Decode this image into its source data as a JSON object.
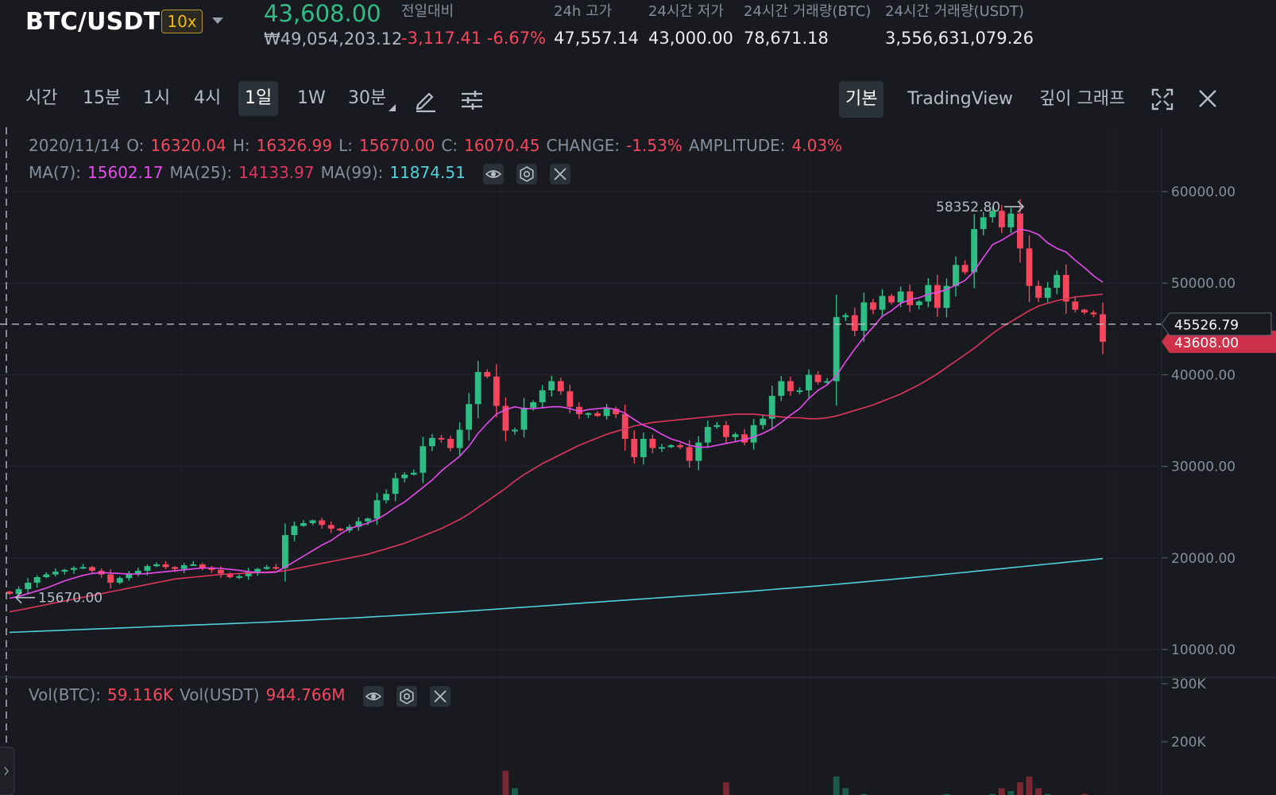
{
  "header": {
    "pair": "BTC/USDT",
    "leverage": "10x",
    "last_price": "43,608.00",
    "price_krw": "₩49,054,203.12",
    "stats": [
      {
        "label": "전일대비",
        "value": "-3,117.41 -6.67%"
      },
      {
        "label": "24h 고가",
        "value": "47,557.14"
      },
      {
        "label": "24시간 저가",
        "value": "43,000.00"
      },
      {
        "label": "24시간 거래량(BTC)",
        "value": "78,671.18"
      },
      {
        "label": "24시간 거래량(USDT)",
        "value": "3,556,631,079.26"
      }
    ]
  },
  "toolbar": {
    "intervals": [
      "시간",
      "15분",
      "1시",
      "4시",
      "1일",
      "1W",
      "30분"
    ],
    "active_interval": "1일",
    "views": [
      "기본",
      "TradingView",
      "깊이 그래프"
    ],
    "active_view": "기본"
  },
  "legend": {
    "date": "2020/11/14",
    "o_label": "O:",
    "o": "16320.04",
    "h_label": "H:",
    "h": "16326.99",
    "l_label": "L:",
    "l": "15670.00",
    "c_label": "C:",
    "c": "16070.45",
    "change_label": "CHANGE:",
    "change": "-1.53%",
    "amp_label": "AMPLITUDE:",
    "amp": "4.03%",
    "ma7_label": "MA(7):",
    "ma7": "15602.17",
    "ma25_label": "MA(25):",
    "ma25": "14133.97",
    "ma99_label": "MA(99):",
    "ma99": "11874.51"
  },
  "volume_legend": {
    "vol_btc_label": "Vol(BTC):",
    "vol_btc": "59.116K",
    "vol_usdt_label": "Vol(USDT)",
    "vol_usdt": "944.766M"
  },
  "colors": {
    "up": "#2ebd85",
    "down": "#f6465d",
    "ma7": "#e84aed",
    "ma25": "#e0355f",
    "ma99": "#4fd1d9"
  },
  "chart_data": {
    "type": "candlestick",
    "y_ticks": [
      "60000.00",
      "50000.00",
      "40000.00",
      "30000.00",
      "20000.00",
      "10000.00"
    ],
    "ylim": [
      7000,
      64000
    ],
    "volume_ticks": [
      "300K",
      "200K"
    ],
    "annotations": {
      "high_label": "58352.80",
      "low_label": "15670.00",
      "crosshair_price": "45526.79",
      "last_price_tag": "43608.00"
    },
    "crosshair_y": 45526.79,
    "high": 58352.8,
    "low": 15670,
    "last": 43608,
    "closes": [
      16070,
      16600,
      17300,
      17900,
      18200,
      18500,
      18700,
      18900,
      19000,
      18600,
      18200,
      17300,
      17800,
      18300,
      18600,
      19100,
      19300,
      19000,
      18800,
      19200,
      19300,
      18900,
      18700,
      18300,
      17900,
      18000,
      18500,
      18800,
      19000,
      18900,
      22500,
      23500,
      23800,
      24100,
      23600,
      23200,
      23000,
      23400,
      24000,
      24300,
      26300,
      27000,
      28700,
      29100,
      29300,
      32200,
      33100,
      33000,
      32000,
      34000,
      36800,
      40300,
      39800,
      36600,
      33900,
      34000,
      36400,
      37000,
      38300,
      39300,
      38200,
      36500,
      35700,
      35800,
      35500,
      36300,
      35700,
      33000,
      31000,
      33000,
      32000,
      32100,
      32300,
      32100,
      30600,
      32600,
      34300,
      34500,
      33200,
      33500,
      32600,
      34500,
      35200,
      37700,
      39300,
      38200,
      38300,
      40000,
      39200,
      39300,
      46300,
      46500,
      44800,
      47900,
      47100,
      48600,
      47900,
      49100,
      47600,
      48000,
      49800,
      47300,
      49700,
      52000,
      51200,
      55900,
      57200,
      57900,
      56100,
      57600,
      53800,
      49700,
      48400,
      49500,
      50900,
      48000,
      47100,
      46800,
      46600,
      43608
    ],
    "ma7": [
      15602,
      15800,
      16100,
      16400,
      16700,
      17100,
      17500,
      17800,
      18100,
      18300,
      18400,
      18350,
      18300,
      18250,
      18250,
      18300,
      18400,
      18500,
      18600,
      18700,
      18800,
      18900,
      18900,
      18850,
      18750,
      18650,
      18500,
      18400,
      18400,
      18450,
      19000,
      19600,
      20200,
      20800,
      21400,
      21900,
      22600,
      23200,
      23500,
      23800,
      24200,
      24800,
      25500,
      26100,
      26900,
      27700,
      28500,
      29500,
      30300,
      31100,
      32200,
      33600,
      34700,
      35700,
      36200,
      36500,
      36300,
      36300,
      36400,
      36500,
      36500,
      36300,
      36000,
      36200,
      36300,
      36400,
      36200,
      35800,
      35100,
      34500,
      34100,
      33500,
      33000,
      32700,
      32300,
      32100,
      32100,
      32300,
      32500,
      32700,
      32900,
      33200,
      33600,
      34100,
      34800,
      35600,
      36300,
      37400,
      38300,
      38900,
      39900,
      41400,
      42800,
      44100,
      45200,
      46400,
      47000,
      47800,
      48200,
      48400,
      48800,
      49000,
      49300,
      49800,
      50300,
      51300,
      52800,
      54200,
      54700,
      55300,
      55900,
      55700,
      55300,
      54400,
      53800,
      53400,
      52500,
      51700,
      50800,
      50100
    ],
    "ma25": [
      14133,
      14300,
      14500,
      14700,
      14900,
      15100,
      15300,
      15500,
      15700,
      15900,
      16100,
      16300,
      16500,
      16700,
      16900,
      17100,
      17300,
      17500,
      17700,
      17800,
      17900,
      18000,
      18100,
      18200,
      18250,
      18300,
      18350,
      18400,
      18450,
      18500,
      18600,
      18800,
      19000,
      19200,
      19400,
      19600,
      19800,
      20000,
      20200,
      20400,
      20700,
      21000,
      21300,
      21600,
      22000,
      22400,
      22800,
      23200,
      23700,
      24200,
      24800,
      25500,
      26200,
      26900,
      27600,
      28400,
      29100,
      29700,
      30300,
      30800,
      31300,
      31800,
      32300,
      32700,
      33100,
      33500,
      33800,
      34100,
      34400,
      34600,
      34800,
      34900,
      35000,
      35100,
      35200,
      35300,
      35400,
      35500,
      35600,
      35700,
      35700,
      35700,
      35600,
      35500,
      35400,
      35300,
      35300,
      35200,
      35200,
      35300,
      35500,
      35800,
      36100,
      36400,
      36700,
      37100,
      37500,
      37900,
      38400,
      38900,
      39500,
      40100,
      40800,
      41500,
      42200,
      42900,
      43700,
      44500,
      45200,
      45800,
      46400,
      47000,
      47500,
      47800,
      48100,
      48300,
      48500,
      48600,
      48700,
      48800
    ],
    "ma99": [
      11874,
      11910,
      11950,
      11990,
      12030,
      12070,
      12110,
      12150,
      12190,
      12230,
      12270,
      12310,
      12350,
      12390,
      12430,
      12470,
      12510,
      12550,
      12590,
      12630,
      12670,
      12710,
      12750,
      12790,
      12830,
      12870,
      12910,
      12950,
      12990,
      13030,
      13080,
      13130,
      13180,
      13230,
      13280,
      13330,
      13380,
      13430,
      13480,
      13530,
      13590,
      13650,
      13710,
      13770,
      13830,
      13890,
      13950,
      14010,
      14070,
      14130,
      14200,
      14270,
      14340,
      14410,
      14480,
      14550,
      14620,
      14690,
      14760,
      14830,
      14900,
      14970,
      15040,
      15110,
      15180,
      15250,
      15320,
      15390,
      15460,
      15530,
      15600,
      15670,
      15740,
      15810,
      15880,
      15950,
      16020,
      16090,
      16160,
      16230,
      16310,
      16390,
      16470,
      16550,
      16630,
      16710,
      16790,
      16870,
      16950,
      17030,
      17120,
      17210,
      17300,
      17390,
      17480,
      17570,
      17660,
      17750,
      17840,
      17930,
      18030,
      18130,
      18230,
      18330,
      18430,
      18530,
      18630,
      18730,
      18830,
      18930,
      19030,
      19130,
      19230,
      19330,
      19430,
      19530,
      19630,
      19730,
      19830,
      19930
    ],
    "volume": [
      30,
      25,
      28,
      20,
      22,
      24,
      26,
      25,
      22,
      28,
      35,
      45,
      30,
      25,
      22,
      24,
      26,
      24,
      22,
      25,
      28,
      24,
      22,
      20,
      26,
      24,
      28,
      25,
      30,
      28,
      55,
      48,
      40,
      35,
      38,
      30,
      34,
      36,
      40,
      42,
      48,
      52,
      58,
      60,
      55,
      62,
      66,
      64,
      58,
      65,
      70,
      80,
      85,
      95,
      150,
      120,
      90,
      80,
      85,
      90,
      72,
      80,
      70,
      60,
      65,
      70,
      65,
      85,
      95,
      80,
      75,
      60,
      65,
      55,
      70,
      65,
      75,
      80,
      130,
      70,
      60,
      65,
      55,
      60,
      65,
      70,
      60,
      55,
      70,
      65,
      140,
      120,
      95,
      110,
      90,
      85,
      75,
      80,
      85,
      90,
      95,
      100,
      110,
      90,
      85,
      95,
      100,
      110,
      120,
      115,
      130,
      140,
      120,
      110,
      95,
      90,
      100,
      110,
      90,
      59
    ]
  }
}
